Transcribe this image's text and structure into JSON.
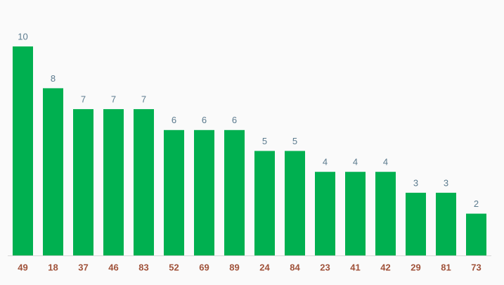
{
  "chart_data": {
    "type": "bar",
    "categories": [
      "49",
      "18",
      "37",
      "46",
      "83",
      "52",
      "69",
      "89",
      "24",
      "84",
      "23",
      "41",
      "42",
      "29",
      "81",
      "73"
    ],
    "values": [
      10,
      8,
      7,
      7,
      7,
      6,
      6,
      6,
      5,
      5,
      4,
      4,
      4,
      3,
      3,
      2
    ],
    "color": "#00b050",
    "ylim": [
      0,
      10
    ]
  }
}
